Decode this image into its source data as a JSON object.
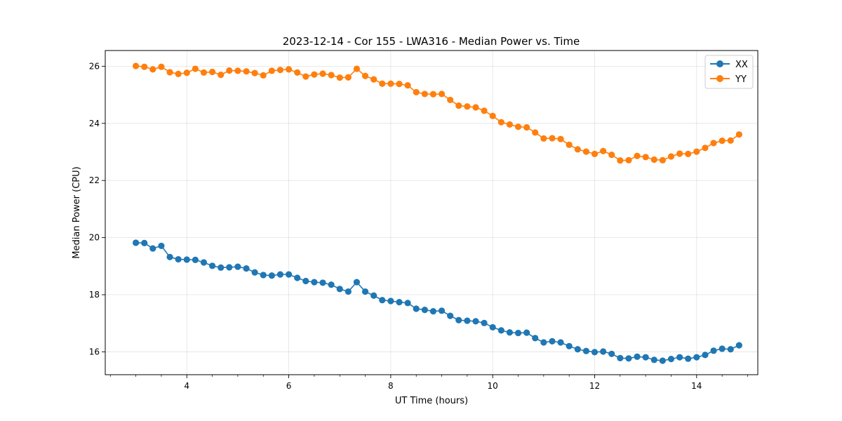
{
  "chart_data": {
    "type": "line",
    "title": "2023-12-14 - Cor 155 - LWA316 - Median Power vs. Time",
    "xlabel": "UT Time (hours)",
    "ylabel": "Median Power (CPU)",
    "xlim": [
      2.4,
      15.2
    ],
    "ylim": [
      15.2,
      26.55
    ],
    "xticks": [
      4,
      6,
      8,
      10,
      12,
      14
    ],
    "xminor_step": 0.5,
    "yticks": [
      16,
      18,
      20,
      22,
      24,
      26
    ],
    "grid": true,
    "legend_position": "top-right",
    "x": [
      3.0,
      3.167,
      3.333,
      3.5,
      3.667,
      3.833,
      4.0,
      4.167,
      4.333,
      4.5,
      4.667,
      4.833,
      5.0,
      5.167,
      5.333,
      5.5,
      5.667,
      5.833,
      6.0,
      6.167,
      6.333,
      6.5,
      6.667,
      6.833,
      7.0,
      7.167,
      7.333,
      7.5,
      7.667,
      7.833,
      8.0,
      8.167,
      8.333,
      8.5,
      8.667,
      8.833,
      9.0,
      9.167,
      9.333,
      9.5,
      9.667,
      9.833,
      10.0,
      10.167,
      10.333,
      10.5,
      10.667,
      10.833,
      11.0,
      11.167,
      11.333,
      11.5,
      11.667,
      11.833,
      12.0,
      12.167,
      12.333,
      12.5,
      12.667,
      12.833,
      13.0,
      13.167,
      13.333,
      13.5,
      13.667,
      13.833,
      14.0,
      14.167,
      14.333,
      14.5,
      14.667,
      14.833
    ],
    "series": [
      {
        "name": "XX",
        "color": "#1f77b4",
        "values": [
          19.82,
          19.81,
          19.62,
          19.71,
          19.32,
          19.24,
          19.23,
          19.22,
          19.13,
          19.01,
          18.95,
          18.96,
          18.98,
          18.92,
          18.78,
          18.69,
          18.67,
          18.71,
          18.71,
          18.59,
          18.48,
          18.44,
          18.42,
          18.35,
          18.2,
          18.11,
          18.44,
          18.11,
          17.97,
          17.81,
          17.78,
          17.74,
          17.71,
          17.51,
          17.47,
          17.42,
          17.44,
          17.26,
          17.11,
          17.09,
          17.07,
          17.01,
          16.86,
          16.75,
          16.68,
          16.66,
          16.67,
          16.48,
          16.33,
          16.37,
          16.33,
          16.2,
          16.09,
          16.03,
          15.99,
          16.01,
          15.93,
          15.78,
          15.77,
          15.83,
          15.81,
          15.72,
          15.69,
          15.75,
          15.81,
          15.76,
          15.81,
          15.89,
          16.04,
          16.11,
          16.09,
          16.23
        ]
      },
      {
        "name": "YY",
        "color": "#ff7f0e",
        "values": [
          26.01,
          25.98,
          25.89,
          25.98,
          25.79,
          25.73,
          25.77,
          25.91,
          25.78,
          25.8,
          25.7,
          25.85,
          25.84,
          25.82,
          25.76,
          25.68,
          25.84,
          25.87,
          25.89,
          25.78,
          25.64,
          25.71,
          25.74,
          25.69,
          25.6,
          25.61,
          25.91,
          25.66,
          25.54,
          25.39,
          25.39,
          25.38,
          25.33,
          25.09,
          25.03,
          25.02,
          25.03,
          24.82,
          24.62,
          24.59,
          24.56,
          24.44,
          24.26,
          24.04,
          23.96,
          23.88,
          23.86,
          23.68,
          23.47,
          23.48,
          23.45,
          23.25,
          23.09,
          23.01,
          22.93,
          23.03,
          22.9,
          22.7,
          22.71,
          22.86,
          22.82,
          22.73,
          22.71,
          22.84,
          22.94,
          22.93,
          23.01,
          23.14,
          23.31,
          23.39,
          23.4,
          23.61
        ]
      }
    ]
  }
}
